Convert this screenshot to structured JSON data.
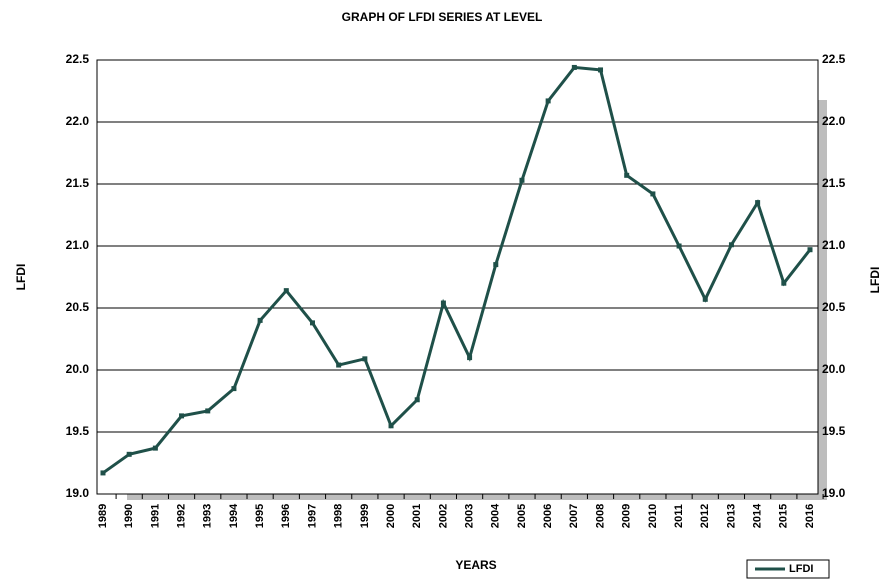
{
  "chart_data": {
    "type": "line",
    "title": "GRAPH OF LFDI SERIES AT LEVEL",
    "x_label": "YEARS",
    "y_label": "LFDI",
    "categories": [
      "1989",
      "1990",
      "1991",
      "1992",
      "1993",
      "1994",
      "1995",
      "1996",
      "1997",
      "1998",
      "1999",
      "2000",
      "2001",
      "2002",
      "2003",
      "2004",
      "2005",
      "2006",
      "2007",
      "2008",
      "2009",
      "2010",
      "2011",
      "2012",
      "2013",
      "2014",
      "2015",
      "2016"
    ],
    "series": [
      {
        "name": "LFDI",
        "color": "#1f5049",
        "values": [
          19.17,
          19.32,
          19.37,
          19.63,
          19.67,
          19.85,
          20.4,
          20.64,
          20.38,
          20.04,
          20.09,
          19.55,
          19.76,
          20.54,
          20.1,
          20.85,
          21.53,
          22.17,
          22.44,
          22.42,
          21.57,
          21.42,
          21.0,
          20.57,
          21.01,
          21.35,
          20.7,
          20.97
        ]
      }
    ],
    "ylim": [
      19.0,
      22.5
    ],
    "yticks": [
      {
        "value": 19.0,
        "label": "19.0"
      },
      19.5,
      {
        "value": 20.0,
        "label": "20.0"
      },
      20.5,
      {
        "value": 21.0,
        "label": "21.0"
      },
      21.5,
      {
        "value": 22.0,
        "label": "22.0"
      },
      22.5
    ],
    "grid": true,
    "legend": "bottom-right"
  }
}
